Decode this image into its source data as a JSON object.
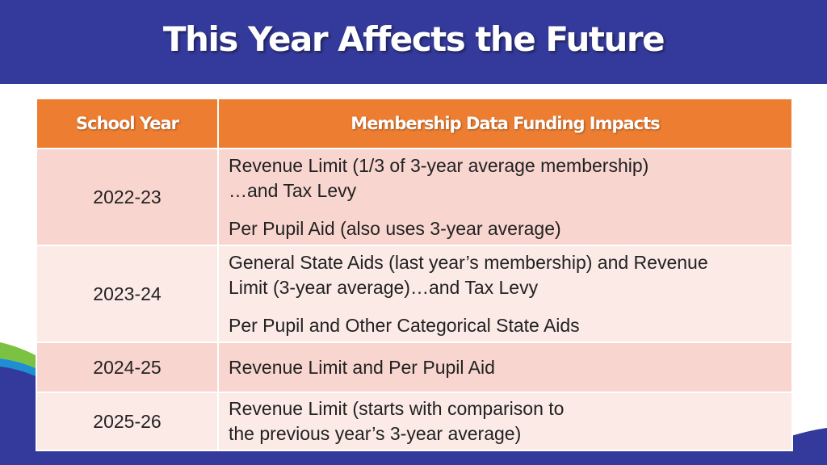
{
  "slide": {
    "title": "This Year Affects the Future"
  },
  "table": {
    "headers": {
      "year": "School Year",
      "impacts": "Membership Data Funding Impacts"
    },
    "rows": [
      {
        "year": "2022-23",
        "p1": [
          "Revenue Limit (1/3 of 3-year average membership)",
          "…and Tax Levy"
        ],
        "p2": [
          "Per Pupil Aid (also uses 3-year average)"
        ]
      },
      {
        "year": "2023-24",
        "p1": [
          "General State Aids (last year’s membership) and Revenue",
          "Limit (3-year average)…and Tax Levy"
        ],
        "p2": [
          "Per Pupil and Other Categorical State Aids"
        ]
      },
      {
        "year": "2024-25",
        "p1": [
          "Revenue Limit and Per Pupil Aid"
        ]
      },
      {
        "year": "2025-26",
        "p1": [
          "Revenue Limit (starts with comparison to",
          "the previous year’s 3-year average)"
        ]
      }
    ]
  },
  "colors": {
    "title_bar": "#343a9b",
    "header_fill": "#ed7d31",
    "row_odd": "#f8d5cf",
    "row_even": "#fbeae6",
    "accent_green": "#7cc242",
    "accent_blue": "#1f8fd1"
  }
}
